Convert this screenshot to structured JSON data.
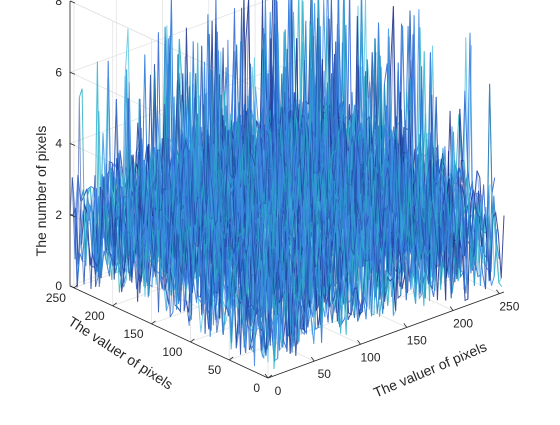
{
  "chart_data": {
    "type": "surface",
    "title": "",
    "xlabel": "The valuer of pixels",
    "ylabel": "The valuer of pixels",
    "zlabel": "The number of pixels",
    "x_ticks": [
      "0",
      "50",
      "100",
      "150",
      "200",
      "250"
    ],
    "y_ticks": [
      "0",
      "50",
      "100",
      "150",
      "200",
      "250"
    ],
    "z_ticks": [
      "0",
      "2",
      "4",
      "6",
      "8"
    ],
    "xlim": [
      0,
      255
    ],
    "ylim": [
      0,
      255
    ],
    "zlim": [
      0,
      8
    ],
    "grid": true,
    "colormap": [
      "#1f3f9c",
      "#2a5fd6",
      "#3a8ee8",
      "#1e73d2",
      "#2bb0c8",
      "#1c2f8a",
      "#3f7fe0",
      "#5fc6e0"
    ],
    "z_stats": {
      "typical": 3,
      "peak": 8,
      "min": 0
    }
  }
}
